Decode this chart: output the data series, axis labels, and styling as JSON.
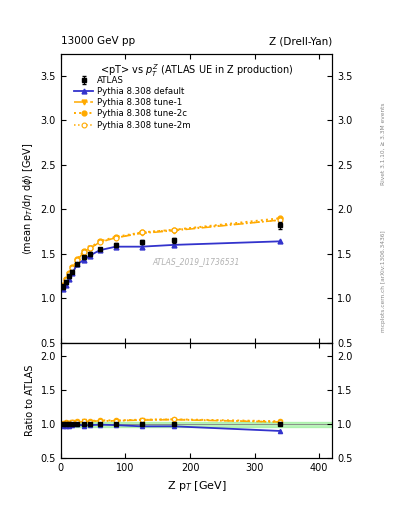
{
  "title_left": "13000 GeV pp",
  "title_right": "Z (Drell-Yan)",
  "plot_title": "<pT> vs $p_T^Z$ (ATLAS UE in Z production)",
  "xlabel": "Z p$_T$ [GeV]",
  "ylabel_main": "<mean p$_T$/dη dφ> [GeV]",
  "ylabel_ratio": "Ratio to ATLAS",
  "right_label_top": "Rivet 3.1.10, ≥ 3.3M events",
  "right_label_bot": "mcplots.cern.ch [arXiv:1306.3436]",
  "watermark": "ATLAS_2019_I1736531",
  "xlim": [
    0,
    420
  ],
  "ylim_main": [
    0.5,
    3.75
  ],
  "ylim_ratio": [
    0.5,
    2.2
  ],
  "yticks_main": [
    0.5,
    1.0,
    1.5,
    2.0,
    2.5,
    3.0,
    3.5
  ],
  "yticks_ratio": [
    0.5,
    1.0,
    1.5,
    2.0
  ],
  "xticks": [
    0,
    100,
    200,
    300,
    400
  ],
  "atlas_x": [
    2.5,
    7.5,
    12.5,
    17.5,
    25,
    35,
    45,
    60,
    85,
    125,
    175,
    340
  ],
  "atlas_y": [
    1.13,
    1.18,
    1.25,
    1.3,
    1.38,
    1.46,
    1.5,
    1.55,
    1.6,
    1.63,
    1.65,
    1.82
  ],
  "atlas_yerr": [
    0.03,
    0.02,
    0.02,
    0.02,
    0.02,
    0.02,
    0.02,
    0.02,
    0.02,
    0.02,
    0.03,
    0.04
  ],
  "pythia_default_x": [
    2.5,
    7.5,
    12.5,
    17.5,
    25,
    35,
    45,
    60,
    85,
    125,
    175,
    340
  ],
  "pythia_default_y": [
    1.1,
    1.15,
    1.22,
    1.28,
    1.38,
    1.43,
    1.48,
    1.54,
    1.58,
    1.58,
    1.6,
    1.64
  ],
  "tune1_x": [
    2.5,
    7.5,
    12.5,
    17.5,
    25,
    35,
    45,
    60,
    85,
    125,
    175,
    340
  ],
  "tune1_y": [
    1.14,
    1.2,
    1.27,
    1.34,
    1.42,
    1.52,
    1.56,
    1.63,
    1.68,
    1.73,
    1.76,
    1.88
  ],
  "tune2c_x": [
    2.5,
    7.5,
    12.5,
    17.5,
    25,
    35,
    45,
    60,
    85,
    125,
    175,
    340
  ],
  "tune2c_y": [
    1.15,
    1.22,
    1.28,
    1.35,
    1.44,
    1.53,
    1.57,
    1.64,
    1.69,
    1.74,
    1.77,
    1.9
  ],
  "tune2m_x": [
    2.5,
    7.5,
    12.5,
    17.5,
    25,
    35,
    45,
    60,
    85,
    125,
    175,
    340
  ],
  "tune2m_y": [
    1.14,
    1.21,
    1.27,
    1.34,
    1.43,
    1.52,
    1.56,
    1.63,
    1.68,
    1.74,
    1.77,
    1.88
  ],
  "color_default": "#3333cc",
  "color_tunes": "#ffaa00",
  "band_color": "#90ee90",
  "band_alpha": 0.6,
  "band_low": 0.96,
  "band_high": 1.04
}
